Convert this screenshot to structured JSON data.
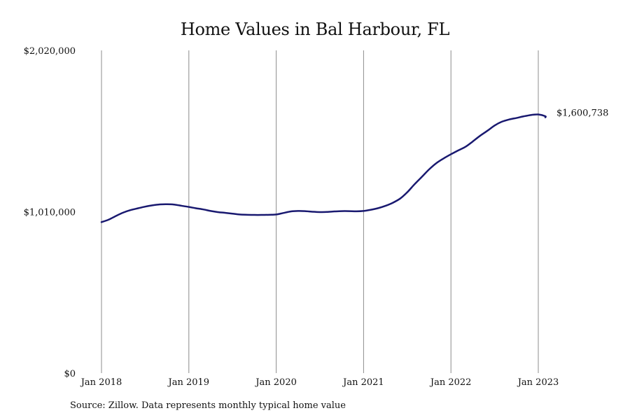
{
  "chart_data": {
    "type": "line",
    "title": "Home Values in Bal Harbour, FL",
    "xlabel": "",
    "ylabel": "",
    "ylim": [
      0,
      2020000
    ],
    "yticks": [
      {
        "value": 0,
        "label": "$0"
      },
      {
        "value": 1010000,
        "label": "$1,010,000"
      },
      {
        "value": 2020000,
        "label": "$2,020,000"
      }
    ],
    "xlim": [
      2018.0,
      2023.0
    ],
    "xticks": [
      {
        "value": 2018.0,
        "label": "Jan 2018"
      },
      {
        "value": 2019.0,
        "label": "Jan 2019"
      },
      {
        "value": 2020.0,
        "label": "Jan 2020"
      },
      {
        "value": 2021.0,
        "label": "Jan 2021"
      },
      {
        "value": 2022.0,
        "label": "Jan 2022"
      },
      {
        "value": 2023.0,
        "label": "Jan 2023"
      }
    ],
    "grid": "vertical",
    "color": "#191970",
    "end_label": "$1,600,738",
    "series": [
      {
        "points": [
          [
            2018.0,
            945000
          ],
          [
            2018.08,
            960000
          ],
          [
            2018.17,
            985000
          ],
          [
            2018.25,
            1005000
          ],
          [
            2018.33,
            1020000
          ],
          [
            2018.42,
            1032000
          ],
          [
            2018.5,
            1042000
          ],
          [
            2018.58,
            1050000
          ],
          [
            2018.67,
            1056000
          ],
          [
            2018.75,
            1057000
          ],
          [
            2018.83,
            1055000
          ],
          [
            2018.92,
            1047000
          ],
          [
            2019.0,
            1040000
          ],
          [
            2019.08,
            1032000
          ],
          [
            2019.17,
            1024000
          ],
          [
            2019.25,
            1015000
          ],
          [
            2019.33,
            1008000
          ],
          [
            2019.42,
            1003000
          ],
          [
            2019.5,
            998000
          ],
          [
            2019.58,
            993000
          ],
          [
            2019.67,
            991000
          ],
          [
            2019.75,
            990000
          ],
          [
            2019.83,
            990000
          ],
          [
            2019.92,
            991000
          ],
          [
            2020.0,
            993000
          ],
          [
            2020.08,
            1002000
          ],
          [
            2020.17,
            1012000
          ],
          [
            2020.25,
            1015000
          ],
          [
            2020.33,
            1014000
          ],
          [
            2020.42,
            1010000
          ],
          [
            2020.5,
            1008000
          ],
          [
            2020.58,
            1009000
          ],
          [
            2020.67,
            1012000
          ],
          [
            2020.75,
            1014000
          ],
          [
            2020.83,
            1014000
          ],
          [
            2020.92,
            1013000
          ],
          [
            2021.0,
            1015000
          ],
          [
            2021.08,
            1022000
          ],
          [
            2021.17,
            1033000
          ],
          [
            2021.25,
            1047000
          ],
          [
            2021.33,
            1065000
          ],
          [
            2021.42,
            1093000
          ],
          [
            2021.5,
            1132000
          ],
          [
            2021.58,
            1180000
          ],
          [
            2021.67,
            1230000
          ],
          [
            2021.75,
            1275000
          ],
          [
            2021.83,
            1313000
          ],
          [
            2021.92,
            1345000
          ],
          [
            2022.0,
            1370000
          ],
          [
            2022.08,
            1393000
          ],
          [
            2022.17,
            1418000
          ],
          [
            2022.25,
            1450000
          ],
          [
            2022.33,
            1484000
          ],
          [
            2022.42,
            1518000
          ],
          [
            2022.5,
            1550000
          ],
          [
            2022.58,
            1573000
          ],
          [
            2022.67,
            1588000
          ],
          [
            2022.75,
            1597000
          ],
          [
            2022.83,
            1607000
          ],
          [
            2022.92,
            1616000
          ],
          [
            2023.0,
            1619000
          ],
          [
            2023.08,
            1608000
          ],
          [
            2023.08,
            1600738
          ]
        ]
      }
    ],
    "source_note": "Source: Zillow. Data represents monthly typical home value"
  }
}
